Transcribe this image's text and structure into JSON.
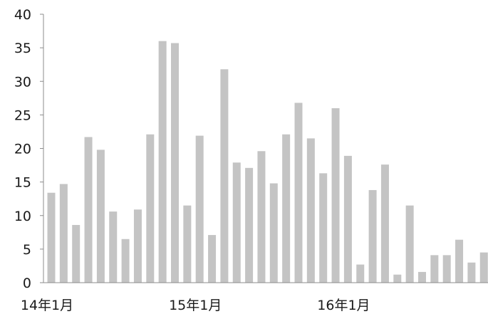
{
  "chart_data": {
    "type": "bar",
    "title": "",
    "xlabel": "",
    "ylabel": "",
    "ylim": [
      0,
      40
    ],
    "yticks": [
      0,
      5,
      10,
      15,
      20,
      25,
      30,
      35,
      40
    ],
    "grid": false,
    "legend": "none",
    "bar_color": "#c4c4c4",
    "x_tick_labels": [
      {
        "index": 0,
        "label": "14年1月"
      },
      {
        "index": 12,
        "label": "15年1月"
      },
      {
        "index": 24,
        "label": "16年1月"
      }
    ],
    "categories": [
      "2014-01",
      "2014-02",
      "2014-03",
      "2014-04",
      "2014-05",
      "2014-06",
      "2014-07",
      "2014-08",
      "2014-09",
      "2014-10",
      "2014-11",
      "2014-12",
      "2015-01",
      "2015-02",
      "2015-03",
      "2015-04",
      "2015-05",
      "2015-06",
      "2015-07",
      "2015-08",
      "2015-09",
      "2015-10",
      "2015-11",
      "2015-12",
      "2016-01",
      "2016-02",
      "2016-03",
      "2016-04",
      "2016-05",
      "2016-06",
      "2016-07",
      "2016-08",
      "2016-09",
      "2016-10",
      "2016-11",
      "2016-12",
      "2017-01",
      "2017-02",
      "2017-03"
    ],
    "values": [
      13.4,
      14.7,
      8.6,
      21.7,
      19.8,
      10.6,
      6.5,
      10.9,
      22.1,
      36.0,
      35.7,
      11.5,
      21.9,
      7.1,
      31.8,
      17.9,
      17.1,
      19.6,
      14.8,
      22.1,
      26.8,
      21.5,
      16.3,
      26.0,
      18.9,
      2.7,
      13.8,
      17.6,
      1.2,
      11.5,
      1.6,
      4.1,
      4.1,
      6.4,
      3.0,
      4.5,
      0,
      0,
      0
    ]
  }
}
